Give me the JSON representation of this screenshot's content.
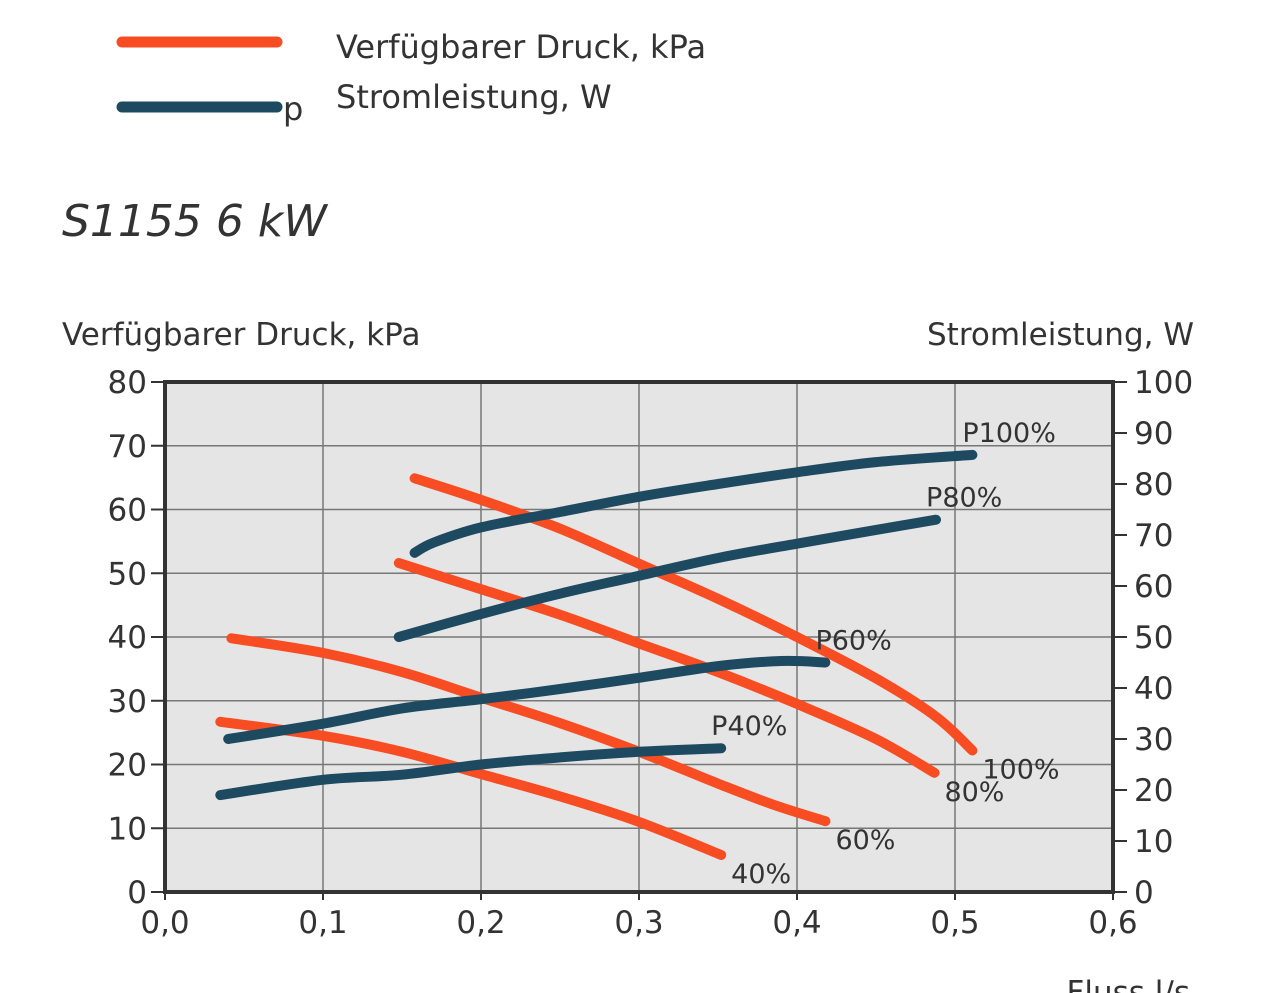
{
  "legend": [
    {
      "color_key": "pressure",
      "marker": "",
      "label": "Verfügbarer Druck, kPa"
    },
    {
      "color_key": "power",
      "marker": "p",
      "label": "Stromleistung, W"
    }
  ],
  "colors": {
    "pressure": "#f84d23",
    "power": "#1d4a60",
    "plot_bg": "#e5e5e5",
    "grid": "#777777",
    "frame": "#333333",
    "text": "#333333"
  },
  "chart_data": {
    "type": "line",
    "title": "S1155 6 kW",
    "xlabel": "Fluss l/s",
    "ylabel_left": "Verfügbarer Druck, kPa",
    "ylabel_right": "Stromleistung, W",
    "xlim": [
      0,
      0.6
    ],
    "ylim_left": [
      0,
      80
    ],
    "ylim_right": [
      0,
      100
    ],
    "x_ticks": [
      "0,0",
      "0,1",
      "0,2",
      "0,3",
      "0,4",
      "0,5",
      "0,6"
    ],
    "y_left_ticks": [
      "0",
      "10",
      "20",
      "30",
      "40",
      "50",
      "60",
      "70",
      "80"
    ],
    "y_right_ticks": [
      "0",
      "10",
      "20",
      "30",
      "40",
      "50",
      "60",
      "70",
      "80",
      "90",
      "100"
    ],
    "grid": true,
    "legend_position": "top-left",
    "pressure_series": [
      {
        "name": "40%",
        "points": [
          [
            0.035,
            26.7
          ],
          [
            0.1,
            24.5
          ],
          [
            0.15,
            22.0
          ],
          [
            0.2,
            18.5
          ],
          [
            0.25,
            15.0
          ],
          [
            0.3,
            11.0
          ],
          [
            0.352,
            5.8
          ]
        ]
      },
      {
        "name": "60%",
        "points": [
          [
            0.042,
            39.8
          ],
          [
            0.1,
            37.5
          ],
          [
            0.15,
            34.5
          ],
          [
            0.2,
            30.5
          ],
          [
            0.25,
            26.5
          ],
          [
            0.3,
            22.0
          ],
          [
            0.35,
            17.0
          ],
          [
            0.385,
            13.7
          ],
          [
            0.418,
            11.1
          ]
        ]
      },
      {
        "name": "80%",
        "points": [
          [
            0.148,
            51.6
          ],
          [
            0.2,
            47.5
          ],
          [
            0.25,
            43.5
          ],
          [
            0.3,
            39.0
          ],
          [
            0.35,
            34.5
          ],
          [
            0.4,
            29.5
          ],
          [
            0.45,
            24.0
          ],
          [
            0.487,
            18.7
          ]
        ]
      },
      {
        "name": "100%",
        "points": [
          [
            0.158,
            64.9
          ],
          [
            0.2,
            61.5
          ],
          [
            0.25,
            57.0
          ],
          [
            0.3,
            51.5
          ],
          [
            0.35,
            46.0
          ],
          [
            0.4,
            40.0
          ],
          [
            0.45,
            33.5
          ],
          [
            0.488,
            27.5
          ],
          [
            0.511,
            22.2
          ]
        ]
      }
    ],
    "power_series": [
      {
        "name": "P40%",
        "points": [
          [
            0.035,
            19.0
          ],
          [
            0.1,
            22.0
          ],
          [
            0.15,
            23.0
          ],
          [
            0.2,
            25.0
          ],
          [
            0.25,
            26.4
          ],
          [
            0.3,
            27.5
          ],
          [
            0.352,
            28.2
          ]
        ]
      },
      {
        "name": "P60%",
        "points": [
          [
            0.04,
            30.0
          ],
          [
            0.1,
            33.0
          ],
          [
            0.15,
            36.0
          ],
          [
            0.2,
            37.8
          ],
          [
            0.25,
            39.8
          ],
          [
            0.3,
            42.0
          ],
          [
            0.35,
            44.3
          ],
          [
            0.39,
            45.3
          ],
          [
            0.418,
            45.0
          ]
        ]
      },
      {
        "name": "P80%",
        "points": [
          [
            0.148,
            50.0
          ],
          [
            0.2,
            54.5
          ],
          [
            0.25,
            58.5
          ],
          [
            0.3,
            62.0
          ],
          [
            0.35,
            65.5
          ],
          [
            0.4,
            68.3
          ],
          [
            0.45,
            71.0
          ],
          [
            0.488,
            73.0
          ]
        ]
      },
      {
        "name": "P100%",
        "points": [
          [
            0.158,
            66.5
          ],
          [
            0.17,
            68.5
          ],
          [
            0.2,
            71.5
          ],
          [
            0.25,
            74.5
          ],
          [
            0.3,
            77.5
          ],
          [
            0.35,
            80.0
          ],
          [
            0.4,
            82.3
          ],
          [
            0.45,
            84.3
          ],
          [
            0.511,
            85.7
          ]
        ]
      }
    ]
  }
}
